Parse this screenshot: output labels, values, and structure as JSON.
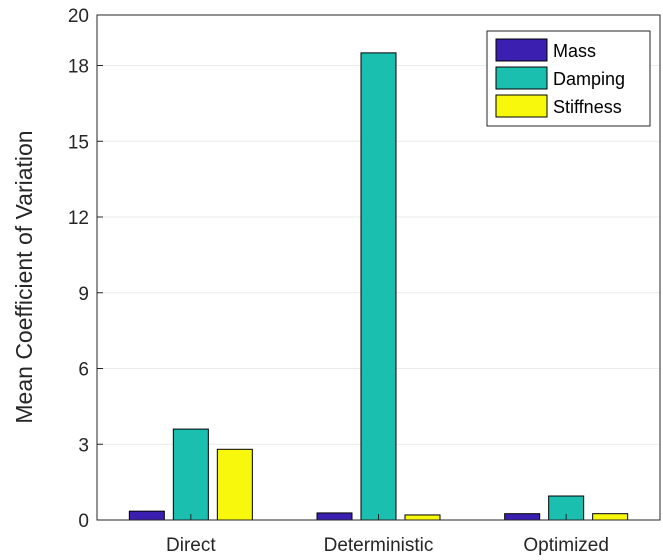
{
  "chart_data": {
    "type": "bar",
    "title": "",
    "xlabel": "",
    "ylabel": "Mean Coefficient of Variation",
    "categories": [
      "Direct",
      "Deterministic",
      "Optimized"
    ],
    "series": [
      {
        "name": "Mass",
        "values": [
          0.35,
          0.28,
          0.25
        ],
        "color": "#3a1fb0"
      },
      {
        "name": "Damping",
        "values": [
          3.6,
          18.5,
          0.95
        ],
        "color": "#1abfb0"
      },
      {
        "name": "Stiffness",
        "values": [
          2.8,
          0.2,
          0.25
        ],
        "color": "#f8f80c"
      }
    ],
    "ylim": [
      0,
      20
    ],
    "yticks": [
      "0",
      "3",
      "6",
      "9",
      "12",
      "15",
      "18",
      "20"
    ],
    "ytick_values": [
      0,
      3,
      6,
      9,
      12,
      15,
      18,
      20
    ],
    "grid": true,
    "legend_position": "top-right"
  }
}
